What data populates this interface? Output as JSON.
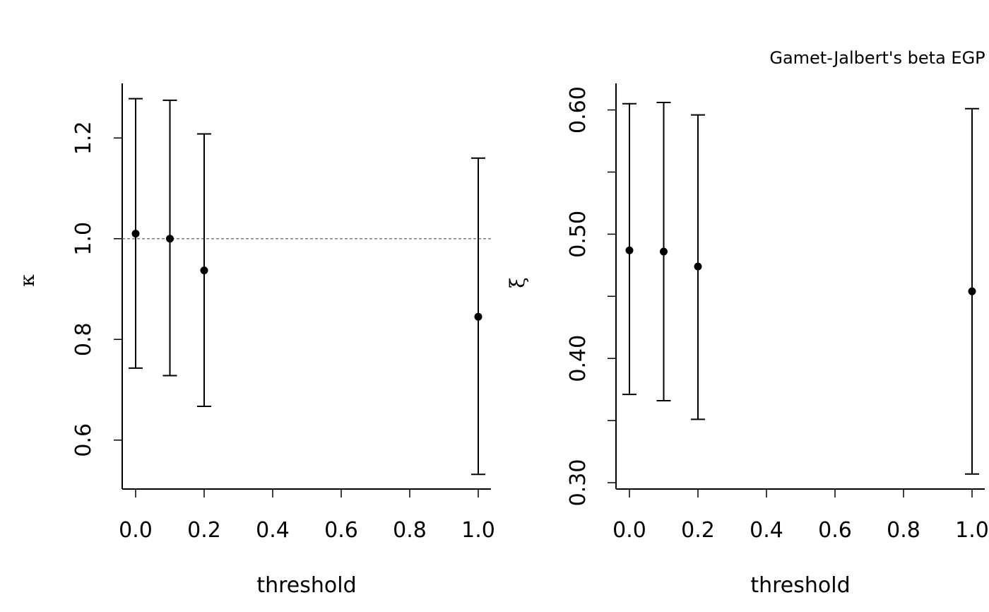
{
  "chart_data": [
    {
      "type": "scatter",
      "title": "",
      "xlabel": "threshold",
      "ylabel": "κ",
      "x": [
        0.0,
        0.1,
        0.2,
        1.0
      ],
      "y": [
        1.01,
        1.0,
        0.937,
        0.845
      ],
      "lower": [
        0.743,
        0.728,
        0.667,
        0.532
      ],
      "upper": [
        1.278,
        1.275,
        1.208,
        1.16
      ],
      "xlim": [
        0,
        1
      ],
      "ylim": [
        0.5,
        1.3
      ],
      "xticks": [
        "0.0",
        "0.2",
        "0.4",
        "0.6",
        "0.8",
        "1.0"
      ],
      "yticks": [
        "0.6",
        "0.8",
        "1.0",
        "1.2"
      ],
      "xtick_values": [
        0.0,
        0.2,
        0.4,
        0.6,
        0.8,
        1.0
      ],
      "ytick_values": [
        0.6,
        0.8,
        1.0,
        1.2
      ],
      "reference_line": 1.0,
      "grid": false
    },
    {
      "type": "scatter",
      "title": "Gamet-Jalbert's beta EGP",
      "xlabel": "threshold",
      "ylabel": "ξ",
      "x": [
        0.0,
        0.1,
        0.2,
        1.0
      ],
      "y": [
        0.487,
        0.486,
        0.474,
        0.454
      ],
      "lower": [
        0.371,
        0.366,
        0.351,
        0.307
      ],
      "upper": [
        0.605,
        0.606,
        0.596,
        0.601
      ],
      "xlim": [
        0,
        1
      ],
      "ylim": [
        0.3,
        0.62
      ],
      "xticks": [
        "0.0",
        "0.2",
        "0.4",
        "0.6",
        "0.8",
        "1.0"
      ],
      "yticks": [
        "0.30",
        "0.40",
        "0.50",
        "0.60"
      ],
      "xtick_values": [
        0.0,
        0.2,
        0.4,
        0.6,
        0.8,
        1.0
      ],
      "ytick_values": [
        0.3,
        0.35,
        0.4,
        0.45,
        0.5,
        0.55,
        0.6
      ],
      "ytick_label_values": [
        0.3,
        0.4,
        0.5,
        0.6
      ],
      "grid": false
    }
  ]
}
